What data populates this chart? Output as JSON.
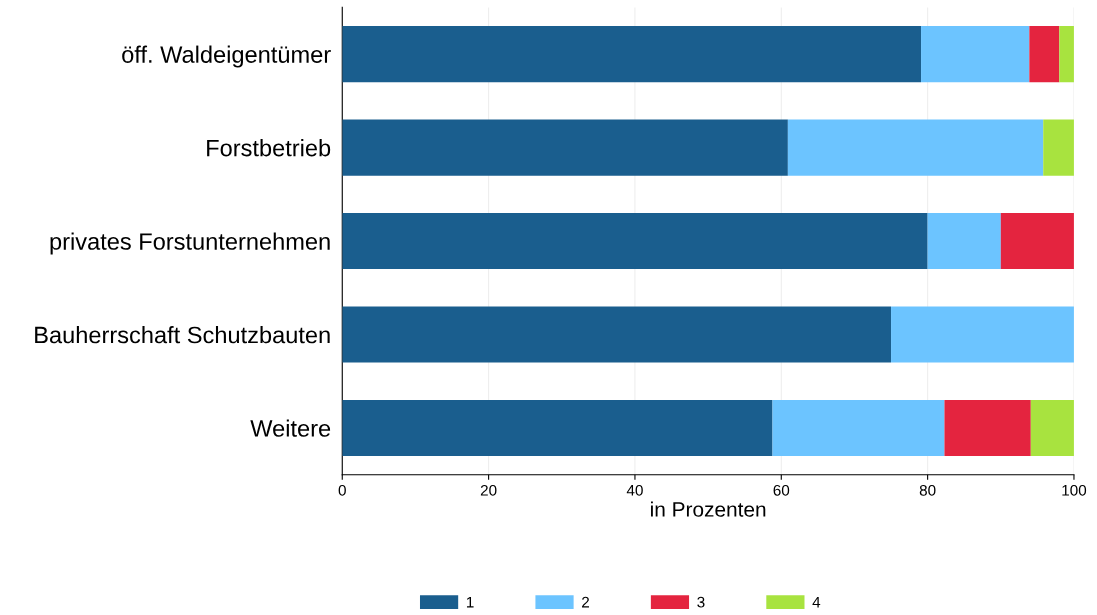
{
  "chart_data": {
    "type": "bar",
    "orientation": "horizontal",
    "stacked": true,
    "categories": [
      "öff. Waldeigentümer",
      "Forstbetrieb",
      "privates Forstunternehmen",
      "Bauherrschaft Schutzbauten",
      "Weitere"
    ],
    "series": [
      {
        "name": "1",
        "color": "#1a5e8e",
        "values": [
          79.1,
          60.9,
          80,
          75,
          58.8
        ]
      },
      {
        "name": "2",
        "color": "#6cc4ff",
        "values": [
          14.8,
          34.9,
          10,
          25,
          23.5
        ]
      },
      {
        "name": "3",
        "color": "#e4243f",
        "values": [
          4.1,
          0,
          10,
          0,
          11.8
        ]
      },
      {
        "name": "4",
        "color": "#a8e33f",
        "values": [
          2.0,
          4.2,
          0,
          0,
          5.9
        ]
      }
    ],
    "xlabel": "in Prozenten",
    "xlim": [
      0,
      100
    ],
    "xticks": [
      0,
      20,
      40,
      60,
      80,
      100
    ],
    "grid": "x",
    "legend": "bottom"
  }
}
